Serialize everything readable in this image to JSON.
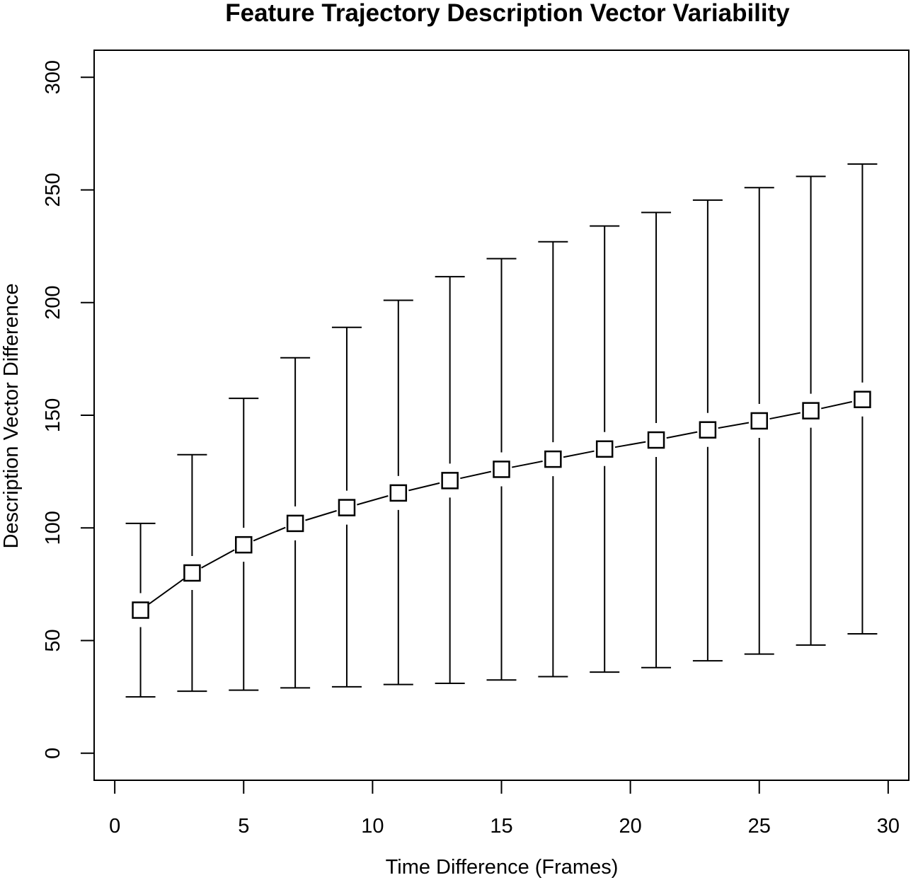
{
  "chart_data": {
    "type": "line",
    "title": "Feature Trajectory Description Vector Variability",
    "xlabel": "Time Difference (Frames)",
    "ylabel": "Description Vector Difference",
    "xlim": [
      -0.8,
      30.8
    ],
    "ylim": [
      -12,
      312
    ],
    "x_ticks": [
      0,
      5,
      10,
      15,
      20,
      25,
      30
    ],
    "y_ticks": [
      0,
      50,
      100,
      150,
      200,
      250,
      300
    ],
    "x_tick_labels": [
      "0",
      "5",
      "10",
      "15",
      "20",
      "25",
      "30"
    ],
    "y_tick_labels": [
      "0",
      "50",
      "100",
      "150",
      "200",
      "250",
      "300"
    ],
    "grid": false,
    "marker": "open-square",
    "line_color": "#000000",
    "series": [
      {
        "x": [
          1,
          3,
          5,
          7,
          9,
          11,
          13,
          15,
          17,
          19,
          21,
          23,
          25,
          27,
          29
        ],
        "y": [
          63.5,
          80,
          92.5,
          102,
          109,
          115.5,
          121,
          126,
          130.5,
          135,
          139,
          143.5,
          147.5,
          152,
          157
        ],
        "lower": [
          25,
          27.5,
          28,
          29,
          29.5,
          30.5,
          31,
          32.5,
          34,
          36,
          38,
          41,
          44,
          48,
          53
        ],
        "upper": [
          102,
          132.5,
          157.5,
          175.5,
          189,
          201,
          211.5,
          219.5,
          227,
          234,
          240,
          245.5,
          251,
          256,
          261.5
        ]
      }
    ]
  }
}
